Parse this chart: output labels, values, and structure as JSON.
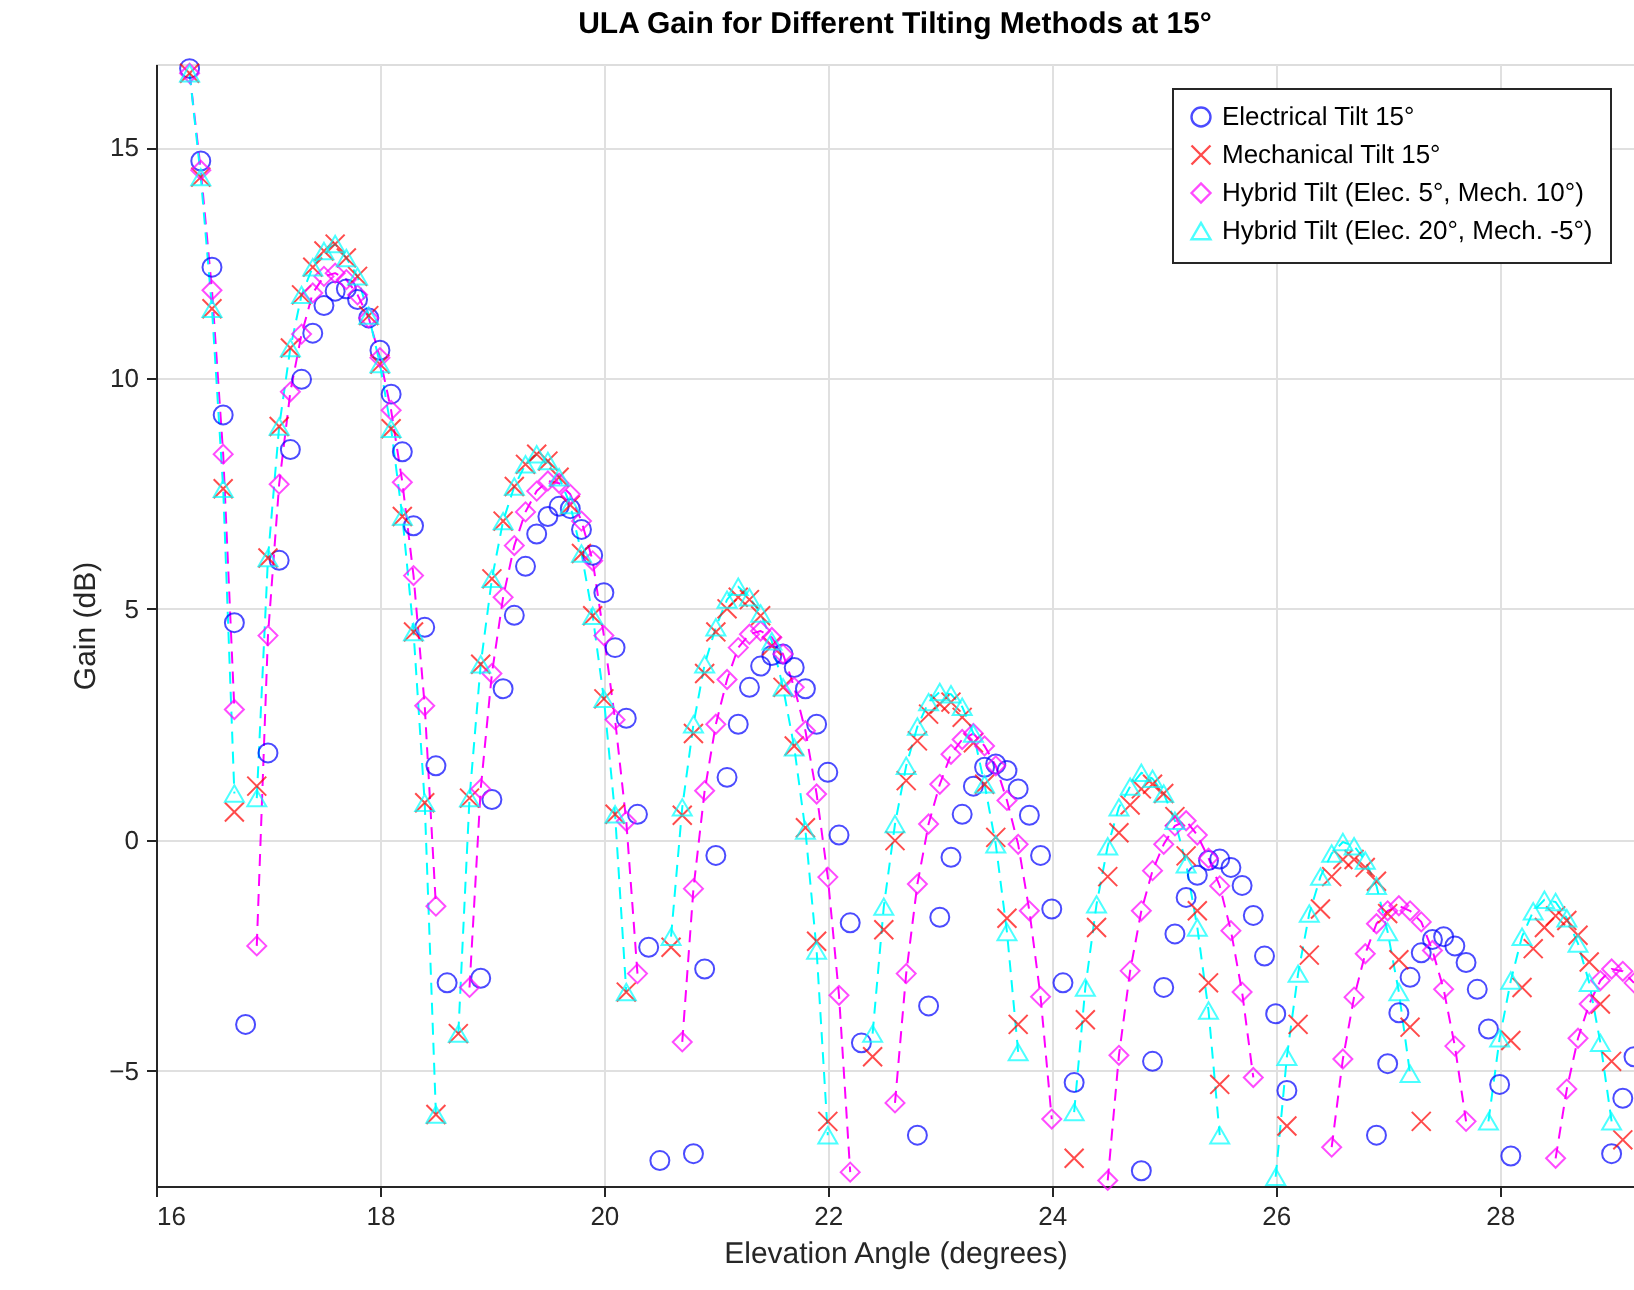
{
  "chart_data": {
    "type": "line",
    "title": "ULA Gain for Different Tilting Methods at 15°",
    "xlabel": "Elevation Angle (degrees)",
    "ylabel": "Gain (dB)",
    "x": [
      16.3,
      16.4,
      16.5,
      16.6,
      16.7,
      16.8,
      16.9,
      17.0,
      17.1,
      17.2,
      17.3,
      17.4,
      17.5,
      17.6,
      17.7,
      17.8,
      17.9,
      18.0,
      18.1,
      18.2,
      18.3,
      18.4,
      18.5,
      18.6,
      18.7,
      18.8,
      18.9,
      19.0,
      19.1,
      19.2,
      19.3,
      19.4,
      19.5,
      19.6,
      19.7,
      19.8,
      19.9,
      20.0,
      20.1,
      20.2,
      20.3,
      20.4,
      20.5,
      20.6,
      20.7,
      20.8,
      20.9,
      21.0,
      21.1,
      21.2,
      21.3,
      21.4,
      21.5,
      21.6,
      21.7,
      21.8,
      21.9,
      22.0,
      22.1,
      22.2,
      22.3,
      22.4,
      22.5,
      22.6,
      22.7,
      22.8,
      22.9,
      23.0,
      23.1,
      23.2,
      23.3,
      23.4,
      23.5,
      23.6,
      23.7,
      23.8,
      23.9,
      24.0,
      24.1,
      24.2,
      24.3,
      24.4,
      24.5,
      24.6,
      24.7,
      24.8,
      24.9,
      25.0,
      25.1,
      25.2,
      25.3,
      25.4,
      25.5,
      25.6,
      25.7,
      25.8,
      25.9,
      26.0,
      26.1,
      26.2,
      26.3,
      26.4,
      26.5,
      26.6,
      26.7,
      26.8,
      26.9,
      27.0,
      27.1,
      27.2,
      27.3,
      27.4,
      27.5,
      27.6,
      27.7,
      27.8,
      27.9,
      28.0,
      28.1,
      28.2,
      28.3,
      28.4,
      28.5,
      28.6,
      28.7,
      28.8,
      28.9,
      29.0,
      29.1,
      29.2
    ],
    "series": [
      {
        "name": "Electrical Tilt 15°",
        "type": "scatter",
        "color": "#0000ff",
        "marker": "circle",
        "values": [
          16.7,
          14.7,
          12.4,
          9.2,
          4.7,
          -4.0,
          null,
          1.88,
          6.05,
          8.45,
          9.97,
          10.97,
          11.57,
          11.88,
          11.93,
          11.7,
          11.3,
          10.6,
          9.65,
          8.4,
          6.8,
          4.6,
          1.6,
          -3.1,
          null,
          null,
          -3.0,
          0.87,
          3.27,
          4.86,
          5.92,
          6.62,
          7.0,
          7.22,
          7.17,
          6.72,
          6.16,
          5.35,
          4.16,
          2.63,
          0.55,
          -2.33,
          -6.95,
          null,
          null,
          -6.8,
          -2.8,
          -0.34,
          1.35,
          2.5,
          3.3,
          3.76,
          3.99,
          4.02,
          3.73,
          3.27,
          2.5,
          1.46,
          0.1,
          -1.8,
          -4.4,
          null,
          null,
          null,
          null,
          -6.4,
          -3.6,
          -1.68,
          -0.38,
          0.55,
          1.16,
          1.57,
          1.64,
          1.5,
          1.1,
          0.53,
          -0.34,
          -1.5,
          -3.1,
          -5.26,
          null,
          null,
          null,
          null,
          null,
          -7.17,
          -4.8,
          -3.2,
          -2.04,
          -1.25,
          -0.77,
          -0.45,
          -0.42,
          -0.6,
          -0.99,
          -1.64,
          -2.52,
          -3.77,
          -5.43,
          null,
          null,
          null,
          null,
          null,
          null,
          null,
          -6.4,
          -4.85,
          -3.75,
          -2.98,
          -2.45,
          -2.16,
          -2.1,
          -2.3,
          -2.66,
          -3.24,
          -4.1,
          -5.3,
          -6.85,
          null,
          null,
          null,
          null,
          null,
          null,
          null,
          null,
          -6.8,
          -5.6,
          -4.7
        ]
      },
      {
        "name": "Mechanical Tilt 15°",
        "type": "scatter",
        "color": "#ff0000",
        "marker": "cross",
        "values": [
          16.6,
          14.35,
          11.5,
          7.6,
          0.6,
          null,
          1.16,
          6.1,
          8.95,
          10.65,
          11.8,
          12.4,
          12.75,
          12.9,
          12.6,
          12.2,
          11.35,
          10.3,
          8.9,
          7.0,
          4.5,
          0.8,
          -5.95,
          null,
          -4.2,
          0.9,
          3.8,
          5.65,
          6.9,
          7.65,
          8.13,
          8.35,
          8.2,
          7.85,
          7.25,
          6.2,
          4.85,
          3.05,
          0.55,
          -3.3,
          null,
          null,
          null,
          -2.33,
          0.53,
          2.3,
          3.6,
          4.5,
          5.0,
          5.25,
          5.2,
          4.85,
          4.2,
          3.3,
          2.03,
          0.26,
          -2.2,
          -6.1,
          null,
          null,
          null,
          -4.7,
          -1.95,
          -0.02,
          1.28,
          2.14,
          2.72,
          2.94,
          2.98,
          2.65,
          2.1,
          1.2,
          0.05,
          -1.7,
          -4.0,
          null,
          null,
          null,
          null,
          -6.9,
          -3.9,
          -1.9,
          -0.8,
          0.15,
          0.75,
          1.1,
          1.2,
          1.0,
          0.5,
          -0.35,
          -1.54,
          -3.1,
          -5.3,
          null,
          null,
          null,
          null,
          null,
          -6.2,
          -4.0,
          -2.5,
          -1.5,
          -0.8,
          -0.43,
          -0.43,
          -0.6,
          -0.9,
          -1.6,
          -2.6,
          -4.06,
          -6.1,
          null,
          null,
          null,
          null,
          null,
          null,
          null,
          -4.35,
          -3.2,
          -2.36,
          -1.9,
          -1.65,
          -1.75,
          -2.07,
          -2.65,
          -3.56,
          -4.8,
          -6.5,
          null
        ]
      },
      {
        "name": "Hybrid Tilt (Elec. 5°, Mech. 10°)",
        "color": "#ff00ff",
        "marker": "diamond",
        "line_style": "dashed",
        "values": [
          16.6,
          14.5,
          11.9,
          8.35,
          2.82,
          null,
          -2.3,
          4.42,
          7.7,
          9.7,
          10.95,
          11.84,
          12.2,
          12.27,
          12.13,
          11.8,
          11.3,
          10.44,
          9.3,
          7.74,
          5.72,
          2.9,
          -1.44,
          null,
          null,
          -3.2,
          1.1,
          3.6,
          5.25,
          6.37,
          7.1,
          7.55,
          7.77,
          7.72,
          7.48,
          6.9,
          6.04,
          4.42,
          2.6,
          0.4,
          -2.9,
          null,
          null,
          null,
          -4.38,
          -1.06,
          1.06,
          2.5,
          3.47,
          4.16,
          4.45,
          4.52,
          4.38,
          4.02,
          3.3,
          2.36,
          0.99,
          -0.81,
          -3.37,
          -7.2,
          null,
          null,
          null,
          -5.7,
          -2.9,
          -0.96,
          0.34,
          1.2,
          1.85,
          2.17,
          2.3,
          2.03,
          1.6,
          0.85,
          -0.1,
          -1.54,
          -3.4,
          -6.05,
          null,
          null,
          null,
          null,
          -7.38,
          -4.67,
          -2.84,
          -1.54,
          -0.67,
          -0.1,
          0.3,
          0.41,
          0.1,
          -0.4,
          -1.0,
          -1.97,
          -3.3,
          -5.15,
          null,
          null,
          null,
          null,
          null,
          null,
          -6.66,
          -4.75,
          -3.41,
          -2.47,
          -1.82,
          -1.54,
          -1.43,
          -1.54,
          -1.78,
          -2.4,
          -3.24,
          -4.47,
          -6.1,
          null,
          null,
          null,
          null,
          null,
          null,
          null,
          -6.9,
          -5.4,
          -4.3,
          -3.56,
          -3.05,
          -2.8,
          -2.85,
          -3.1
        ]
      },
      {
        "name": "Hybrid Tilt (Elec. 20°, Mech. -5°)",
        "color": "#00ffff",
        "marker": "triangle",
        "line_style": "dashed",
        "values": [
          16.6,
          14.35,
          11.5,
          7.6,
          1.0,
          null,
          0.9,
          6.1,
          8.95,
          10.65,
          11.8,
          12.4,
          12.75,
          12.9,
          12.6,
          12.2,
          11.35,
          10.3,
          8.9,
          7.0,
          4.5,
          0.8,
          -5.95,
          null,
          -4.2,
          0.9,
          3.8,
          5.65,
          6.9,
          7.65,
          8.13,
          8.35,
          8.2,
          7.85,
          7.25,
          6.2,
          4.85,
          3.05,
          0.55,
          -3.3,
          null,
          null,
          null,
          -2.1,
          0.7,
          2.5,
          3.8,
          4.6,
          5.2,
          5.48,
          5.25,
          4.9,
          4.3,
          3.3,
          2.0,
          0.2,
          -2.4,
          -6.4,
          null,
          null,
          null,
          -4.2,
          -1.45,
          0.34,
          1.6,
          2.45,
          2.98,
          3.2,
          3.15,
          2.88,
          2.3,
          1.2,
          -0.1,
          -2.0,
          -4.6,
          null,
          null,
          null,
          null,
          -5.9,
          -3.2,
          -1.4,
          -0.14,
          0.7,
          1.15,
          1.45,
          1.32,
          1.0,
          0.41,
          -0.53,
          -1.9,
          -3.7,
          -6.4,
          null,
          null,
          null,
          null,
          -7.3,
          -4.7,
          -2.9,
          -1.6,
          -0.8,
          -0.3,
          -0.05,
          -0.14,
          -0.45,
          -1.0,
          -2.0,
          -3.3,
          -5.07,
          null,
          null,
          null,
          null,
          null,
          null,
          -6.1,
          -4.3,
          -3.05,
          -2.1,
          -1.55,
          -1.3,
          -1.35,
          -1.7,
          -2.25,
          -3.1,
          -4.4,
          -6.1,
          null,
          null
        ]
      }
    ],
    "xlim": [
      16,
      29.2
    ],
    "xticks": [
      16,
      18,
      20,
      22,
      24,
      26,
      28
    ],
    "ylim": [
      -7.5,
      16.8
    ],
    "yticks": [
      -5,
      0,
      5,
      10,
      15
    ],
    "grid": true,
    "legend": "top right"
  }
}
